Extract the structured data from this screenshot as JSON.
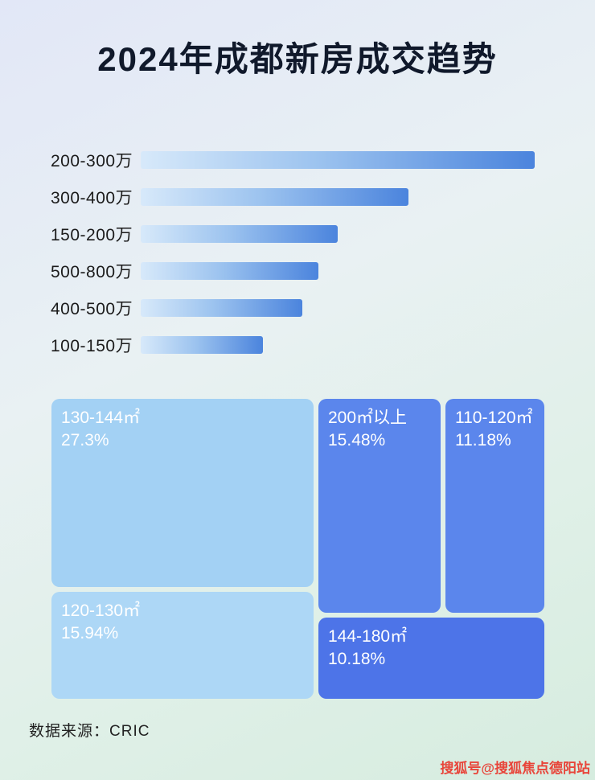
{
  "title": "2024年成都新房成交趋势",
  "chart_data": [
    {
      "type": "bar",
      "title": "2024年成都新房成交趋势",
      "orientation": "horizontal",
      "categories": [
        "200-300万",
        "300-400万",
        "150-200万",
        "500-800万",
        "400-500万",
        "100-150万"
      ],
      "values": [
        100,
        68,
        50,
        45,
        41,
        31
      ],
      "xlabel": "",
      "ylabel": "",
      "grid": false,
      "legend": false,
      "note": "no axis shown; values are relative bar lengths (% of longest bar)"
    },
    {
      "type": "treemap",
      "items": [
        {
          "label": "130-144㎡",
          "value": "27.3%"
        },
        {
          "label": "200㎡以上",
          "value": "15.48%"
        },
        {
          "label": "110-120㎡",
          "value": "11.18%"
        },
        {
          "label": "120-130㎡",
          "value": "15.94%"
        },
        {
          "label": "144-180㎡",
          "value": "10.18%"
        }
      ]
    }
  ],
  "colors": {
    "bar_gradient_start": "#d7e9fa",
    "bar_gradient_end": "#4b84dd",
    "treemap_light": "#a3d1f4",
    "treemap_medium": "#5b86ec",
    "treemap_dark": "#4d74e8",
    "watermark_red": "#e8453a"
  },
  "footer": {
    "source": "数据来源：CRIC"
  },
  "watermark": "搜狐号@搜狐焦点德阳站"
}
